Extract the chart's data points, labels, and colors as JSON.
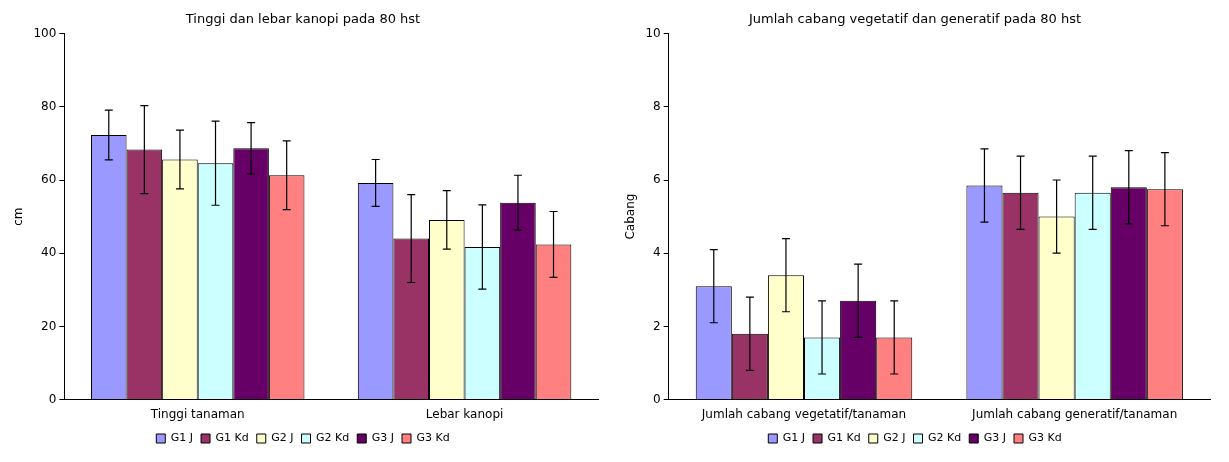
{
  "chart_data": [
    {
      "type": "bar",
      "title": "Tinggi dan lebar kanopi pada 80 hst",
      "ylabel": "cm",
      "categories": [
        "Tinggi tanaman",
        "Lebar kanopi"
      ],
      "ylim": [
        0,
        100
      ],
      "yticks": [
        0,
        20,
        40,
        60,
        80,
        100
      ],
      "grid": false,
      "legend": "bottom",
      "series": [
        {
          "name": "G1 J",
          "color": "#9999ff",
          "values": [
            72.3,
            59.2
          ],
          "errors": [
            6.8,
            6.4
          ]
        },
        {
          "name": "G1 Kd",
          "color": "#993366",
          "values": [
            68.3,
            44
          ],
          "errors": [
            12,
            12
          ]
        },
        {
          "name": "G2 J",
          "color": "#ffffcc",
          "values": [
            65.6,
            49.1
          ],
          "errors": [
            8,
            8
          ]
        },
        {
          "name": "G2 Kd",
          "color": "#ccffff",
          "values": [
            64.6,
            41.7
          ],
          "errors": [
            11.5,
            11.5
          ]
        },
        {
          "name": "G3 J",
          "color": "#660066",
          "values": [
            68.7,
            53.8
          ],
          "errors": [
            7,
            7.5
          ]
        },
        {
          "name": "G3 Kd",
          "color": "#ff8080",
          "values": [
            61.3,
            42.4
          ],
          "errors": [
            9.4,
            9
          ]
        }
      ]
    },
    {
      "type": "bar",
      "title": "Jumlah cabang vegetatif dan generatif pada 80 hst",
      "ylabel": "Cabang",
      "categories": [
        "Jumlah cabang vegetatif/tanaman",
        "Jumlah cabang generatif/tanaman"
      ],
      "ylim": [
        0,
        10
      ],
      "yticks": [
        0,
        2,
        4,
        6,
        8,
        10
      ],
      "grid": false,
      "legend": "bottom",
      "series": [
        {
          "name": "G1 J",
          "color": "#9999ff",
          "values": [
            3.1,
            5.85
          ],
          "errors": [
            1,
            1
          ]
        },
        {
          "name": "G1 Kd",
          "color": "#993366",
          "values": [
            1.8,
            5.65
          ],
          "errors": [
            1,
            1
          ]
        },
        {
          "name": "G2 J",
          "color": "#ffffcc",
          "values": [
            3.4,
            5
          ],
          "errors": [
            1,
            1
          ]
        },
        {
          "name": "G2 Kd",
          "color": "#ccffff",
          "values": [
            1.7,
            5.65
          ],
          "errors": [
            1,
            1
          ]
        },
        {
          "name": "G3 J",
          "color": "#660066",
          "values": [
            2.7,
            5.8
          ],
          "errors": [
            1,
            1
          ]
        },
        {
          "name": "G3 Kd",
          "color": "#ff8080",
          "values": [
            1.7,
            5.75
          ],
          "errors": [
            1,
            1
          ]
        }
      ]
    }
  ]
}
